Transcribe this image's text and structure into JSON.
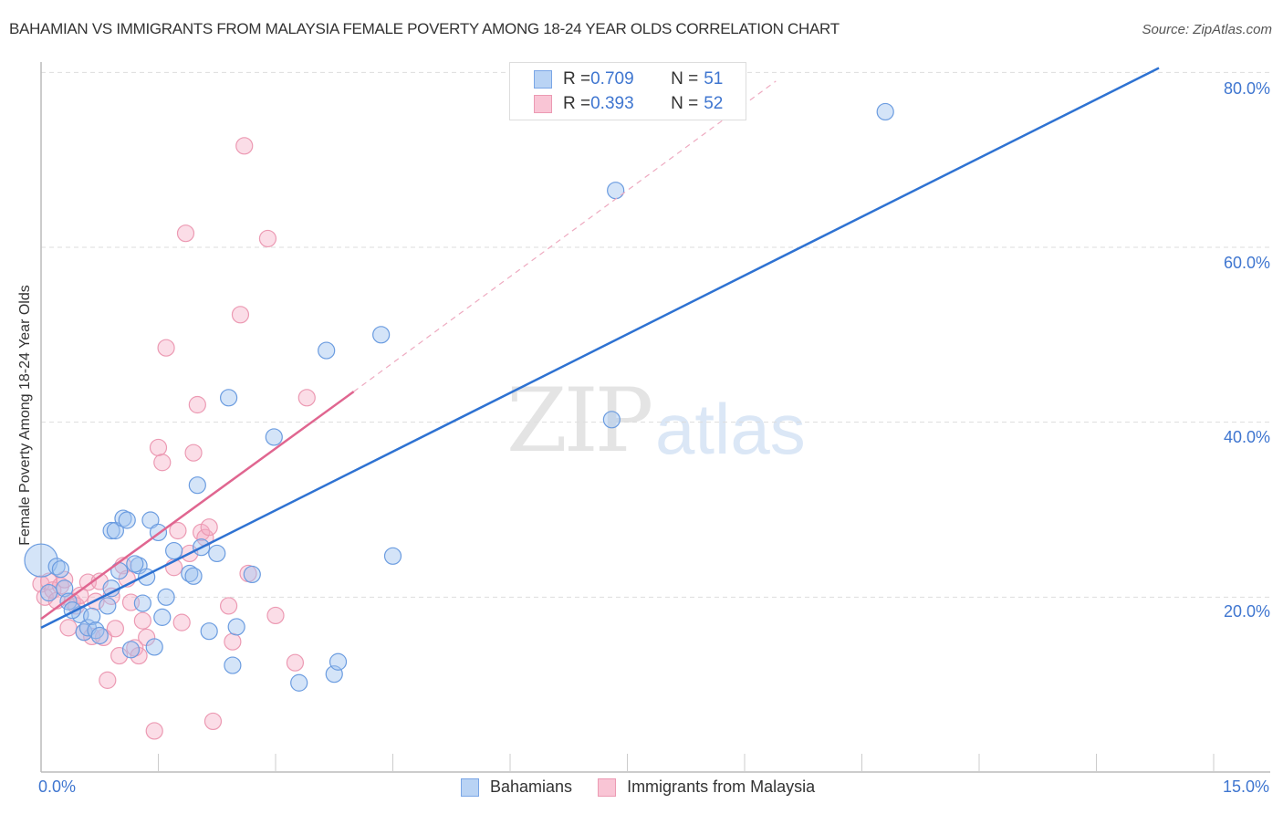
{
  "header": {
    "title": "BAHAMIAN VS IMMIGRANTS FROM MALAYSIA FEMALE POVERTY AMONG 18-24 YEAR OLDS CORRELATION CHART",
    "source": "Source: ZipAtlas.com"
  },
  "legend_top": {
    "rows": [
      {
        "r_label": "R = ",
        "r_value": "0.709",
        "n_label": "N = ",
        "n_value": "51",
        "color": "#4a85d8"
      },
      {
        "r_label": "R = ",
        "r_value": "0.393",
        "n_label": "N = ",
        "n_value": "52",
        "color": "#e57399"
      }
    ]
  },
  "legend_bottom": {
    "items": [
      {
        "label": "Bahamians",
        "color": "#b9d3f4"
      },
      {
        "label": "Immigrants from Malaysia",
        "color": "#f9c5d5"
      }
    ]
  },
  "watermark": {
    "zip": "ZIP",
    "atlas": "atlas"
  },
  "axes": {
    "ylabel": "Female Poverty Among 18-24 Year Olds",
    "yticks": [
      "80.0%",
      "60.0%",
      "40.0%",
      "20.0%"
    ],
    "xticks": [
      "0.0%",
      "15.0%"
    ]
  },
  "chart_data": {
    "type": "scatter",
    "title": "BAHAMIAN VS IMMIGRANTS FROM MALAYSIA FEMALE POVERTY AMONG 18-24 YEAR OLDS CORRELATION CHART",
    "xlabel": "",
    "ylabel": "Female Poverty Among 18-24 Year Olds",
    "xlim": [
      0,
      15.7
    ],
    "ylim": [
      0,
      81
    ],
    "x_tick_labels": [
      "0.0%",
      "15.0%"
    ],
    "y_tick_labels": [
      "20.0%",
      "40.0%",
      "60.0%",
      "80.0%"
    ],
    "grid": "horizontal dashed at 20, 40, 60, 80",
    "legend_position": "top-center and bottom",
    "series": [
      {
        "name": "Bahamians",
        "color": "#4a85d8",
        "R": 0.709,
        "N": 51,
        "trend": {
          "x0": 0.0,
          "y0": 16.5,
          "x1": 14.3,
          "y1": 80.5
        },
        "points": [
          [
            0.0,
            24.2
          ],
          [
            0.2,
            23.5
          ],
          [
            0.25,
            23.2
          ],
          [
            0.3,
            21.0
          ],
          [
            0.35,
            19.5
          ],
          [
            0.5,
            18.0
          ],
          [
            0.55,
            16.0
          ],
          [
            0.6,
            16.5
          ],
          [
            0.65,
            17.8
          ],
          [
            0.7,
            16.2
          ],
          [
            0.85,
            19.0
          ],
          [
            0.9,
            27.6
          ],
          [
            0.95,
            27.6
          ],
          [
            0.9,
            21.0
          ],
          [
            1.0,
            23.0
          ],
          [
            1.05,
            29.0
          ],
          [
            1.1,
            28.8
          ],
          [
            1.15,
            14.0
          ],
          [
            1.25,
            23.6
          ],
          [
            1.3,
            19.3
          ],
          [
            1.35,
            22.3
          ],
          [
            1.4,
            28.8
          ],
          [
            1.45,
            14.3
          ],
          [
            1.5,
            27.4
          ],
          [
            1.55,
            17.7
          ],
          [
            1.6,
            20.0
          ],
          [
            1.7,
            25.3
          ],
          [
            1.9,
            22.7
          ],
          [
            1.95,
            22.4
          ],
          [
            2.0,
            32.8
          ],
          [
            2.05,
            25.7
          ],
          [
            2.15,
            16.1
          ],
          [
            2.25,
            25.0
          ],
          [
            2.4,
            42.8
          ],
          [
            2.45,
            12.2
          ],
          [
            2.5,
            16.6
          ],
          [
            2.7,
            22.6
          ],
          [
            2.98,
            38.3
          ],
          [
            3.3,
            10.2
          ],
          [
            3.65,
            48.2
          ],
          [
            3.75,
            11.2
          ],
          [
            3.8,
            12.6
          ],
          [
            4.35,
            50.0
          ],
          [
            4.5,
            24.7
          ],
          [
            7.3,
            40.3
          ],
          [
            7.35,
            66.5
          ],
          [
            10.8,
            75.5
          ],
          [
            0.1,
            20.5
          ],
          [
            0.4,
            18.5
          ],
          [
            0.75,
            15.6
          ],
          [
            1.2,
            23.8
          ]
        ]
      },
      {
        "name": "Immigrants from Malaysia",
        "color": "#e57399",
        "R": 0.393,
        "N": 52,
        "trend": {
          "x0": 0.0,
          "y0": 17.5,
          "x1": 4.0,
          "y1": 43.5,
          "dashed_to": {
            "x": 9.4,
            "y": 79.0
          }
        },
        "points": [
          [
            0.0,
            21.5
          ],
          [
            0.05,
            20.0
          ],
          [
            0.1,
            21.8
          ],
          [
            0.15,
            20.8
          ],
          [
            0.2,
            19.6
          ],
          [
            0.25,
            21.3
          ],
          [
            0.3,
            22.0
          ],
          [
            0.35,
            16.5
          ],
          [
            0.4,
            19.5
          ],
          [
            0.45,
            19.0
          ],
          [
            0.5,
            20.2
          ],
          [
            0.55,
            16.0
          ],
          [
            0.6,
            21.7
          ],
          [
            0.65,
            15.5
          ],
          [
            0.7,
            19.5
          ],
          [
            0.75,
            21.8
          ],
          [
            0.8,
            15.4
          ],
          [
            0.85,
            10.5
          ],
          [
            0.9,
            20.1
          ],
          [
            0.95,
            16.4
          ],
          [
            1.0,
            13.3
          ],
          [
            1.05,
            23.6
          ],
          [
            1.1,
            22.1
          ],
          [
            1.15,
            19.4
          ],
          [
            1.2,
            14.2
          ],
          [
            1.25,
            13.3
          ],
          [
            1.3,
            17.3
          ],
          [
            1.35,
            15.4
          ],
          [
            1.45,
            4.7
          ],
          [
            1.5,
            37.1
          ],
          [
            1.55,
            35.4
          ],
          [
            1.6,
            48.5
          ],
          [
            1.7,
            23.4
          ],
          [
            1.75,
            27.6
          ],
          [
            1.8,
            17.1
          ],
          [
            1.85,
            61.6
          ],
          [
            1.9,
            25.0
          ],
          [
            1.95,
            36.5
          ],
          [
            2.0,
            42.0
          ],
          [
            2.05,
            27.4
          ],
          [
            2.1,
            26.8
          ],
          [
            2.15,
            28.0
          ],
          [
            2.2,
            5.8
          ],
          [
            2.4,
            19.0
          ],
          [
            2.45,
            14.9
          ],
          [
            2.55,
            52.3
          ],
          [
            2.6,
            71.6
          ],
          [
            2.65,
            22.7
          ],
          [
            2.9,
            61.0
          ],
          [
            3.0,
            17.9
          ],
          [
            3.25,
            12.5
          ],
          [
            3.4,
            42.8
          ]
        ]
      }
    ]
  }
}
